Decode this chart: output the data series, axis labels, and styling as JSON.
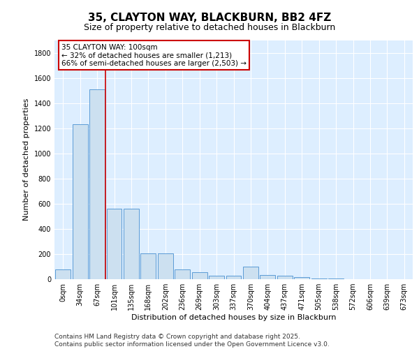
{
  "title": "35, CLAYTON WAY, BLACKBURN, BB2 4FZ",
  "subtitle": "Size of property relative to detached houses in Blackburn",
  "xlabel": "Distribution of detached houses by size in Blackburn",
  "ylabel": "Number of detached properties",
  "categories": [
    "0sqm",
    "34sqm",
    "67sqm",
    "101sqm",
    "135sqm",
    "168sqm",
    "202sqm",
    "236sqm",
    "269sqm",
    "303sqm",
    "337sqm",
    "370sqm",
    "404sqm",
    "437sqm",
    "471sqm",
    "505sqm",
    "538sqm",
    "572sqm",
    "606sqm",
    "639sqm",
    "673sqm"
  ],
  "values": [
    80,
    1230,
    1510,
    560,
    560,
    205,
    205,
    80,
    55,
    25,
    25,
    100,
    35,
    25,
    18,
    8,
    4,
    2,
    1,
    1,
    1
  ],
  "bar_color": "#cce0f0",
  "bar_edgecolor": "#5b9bd5",
  "background_color": "#ddeeff",
  "grid_color": "#ffffff",
  "ylim": [
    0,
    1900
  ],
  "yticks": [
    0,
    200,
    400,
    600,
    800,
    1000,
    1200,
    1400,
    1600,
    1800
  ],
  "vline_x_idx": 2,
  "vline_color": "#cc0000",
  "annotation_text": "35 CLAYTON WAY: 100sqm\n← 32% of detached houses are smaller (1,213)\n66% of semi-detached houses are larger (2,503) →",
  "annotation_box_color": "#cc0000",
  "footer_text": "Contains HM Land Registry data © Crown copyright and database right 2025.\nContains public sector information licensed under the Open Government Licence v3.0.",
  "title_fontsize": 11,
  "subtitle_fontsize": 9,
  "label_fontsize": 8,
  "tick_fontsize": 7,
  "footer_fontsize": 6.5,
  "ann_fontsize": 7.5
}
